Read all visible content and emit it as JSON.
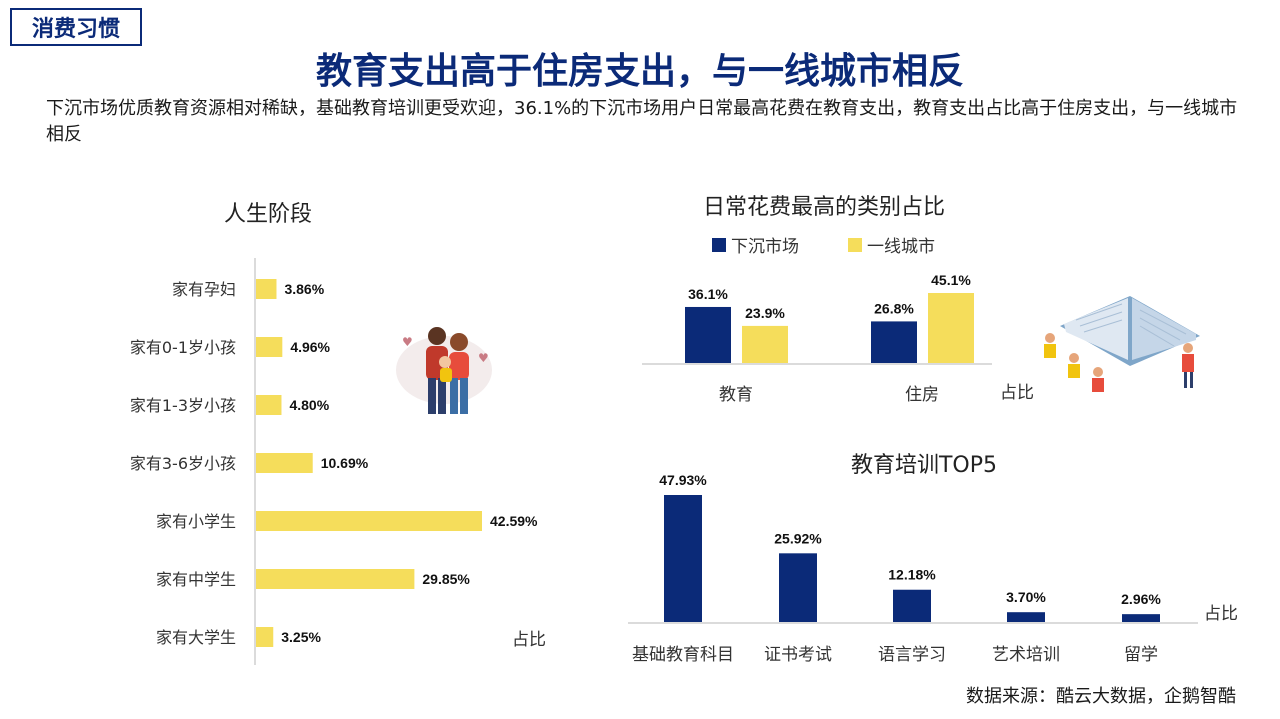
{
  "header": {
    "tag": "消费习惯",
    "title": "教育支出高于住房支出，与一线城市相反",
    "subtitle": "下沉市场优质教育资源相对稀缺，基础教育培训更受欢迎，36.1%的下沉市场用户日常最高花费在教育支出，教育支出占比高于住房支出，与一线城市相反"
  },
  "source": "数据来源：酷云大数据，企鹅智酷",
  "colors": {
    "navy": "#0b2a78",
    "yellow": "#f5dd5b",
    "axis": "#cfcfcf"
  },
  "chart_data": [
    {
      "type": "bar",
      "orientation": "horizontal",
      "title": "人生阶段",
      "unit_label": "占比",
      "categories": [
        "家有孕妇",
        "家有0-1岁小孩",
        "家有1-3岁小孩",
        "家有3-6岁小孩",
        "家有小学生",
        "家有中学生",
        "家有大学生"
      ],
      "values": [
        3.86,
        4.96,
        4.8,
        10.69,
        42.59,
        29.85,
        3.25
      ],
      "labels": [
        "3.86%",
        "4.96%",
        "4.80%",
        "10.69%",
        "42.59%",
        "29.85%",
        "3.25%"
      ],
      "color": "#f5dd5b"
    },
    {
      "type": "bar",
      "title": "日常花费最高的类别占比",
      "unit_label": "占比",
      "categories": [
        "教育",
        "住房"
      ],
      "series": [
        {
          "name": "下沉市场",
          "values": [
            36.1,
            26.8
          ],
          "labels": [
            "36.1%",
            "26.8%"
          ],
          "color": "#0b2a78"
        },
        {
          "name": "一线城市",
          "values": [
            23.9,
            45.1
          ],
          "labels": [
            "23.9%",
            "45.1%"
          ],
          "color": "#f5dd5b"
        }
      ],
      "legend": "top"
    },
    {
      "type": "bar",
      "title": "教育培训TOP5",
      "unit_label": "占比",
      "categories": [
        "基础教育科目",
        "证书考试",
        "语言学习",
        "艺术培训",
        "留学"
      ],
      "values": [
        47.93,
        25.92,
        12.18,
        3.7,
        2.96
      ],
      "labels": [
        "47.93%",
        "25.92%",
        "12.18%",
        "3.70%",
        "2.96%"
      ],
      "color": "#0b2a78"
    }
  ]
}
